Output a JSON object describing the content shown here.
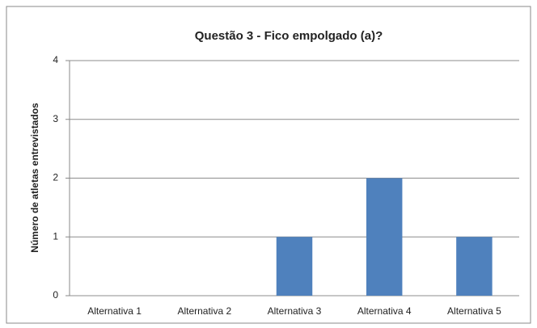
{
  "chart_data": {
    "type": "bar",
    "title": "Questão 3 - Fico empolgado (a)?",
    "y_label": "Número de atletas entrevistados",
    "categories": [
      "Alternativa 1",
      "Alternativa 2",
      "Alternativa 3",
      "Alternativa 4",
      "Alternativa 5"
    ],
    "values": [
      0,
      0,
      1,
      2,
      1
    ],
    "color": "#4f81bd",
    "ylim": [
      0,
      4
    ],
    "yticks": [
      0,
      1,
      2,
      3,
      4
    ],
    "grid": true
  }
}
